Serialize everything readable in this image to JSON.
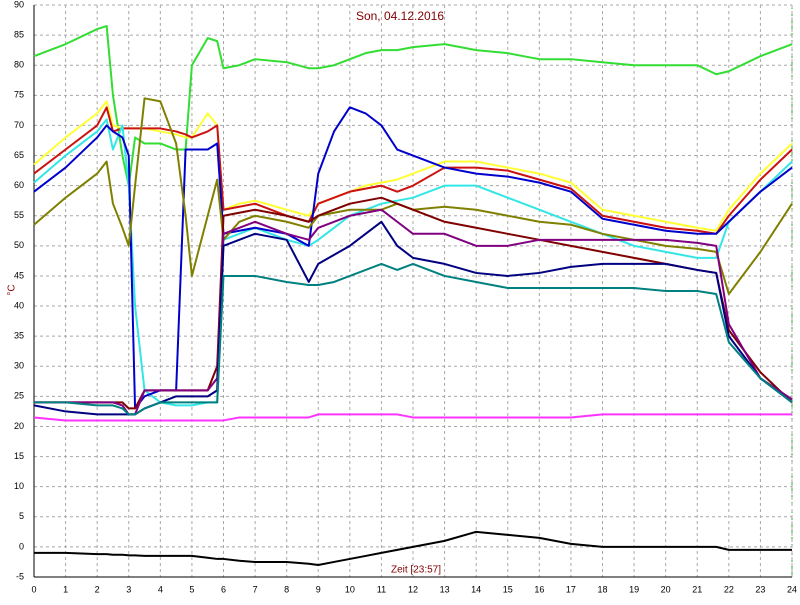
{
  "chart_data": {
    "type": "line",
    "title": "Son, 04.12.2016",
    "x_label": "Zeit [23:57]",
    "y_label": "°C",
    "xlim": [
      0,
      24
    ],
    "xticks": [
      0,
      1,
      2,
      3,
      4,
      5,
      6,
      7,
      8,
      9,
      10,
      11,
      12,
      13,
      14,
      15,
      16,
      17,
      18,
      19,
      20,
      21,
      22,
      23,
      24
    ],
    "ylim": [
      -5,
      90
    ],
    "yticks": [
      -5,
      0,
      5,
      10,
      15,
      20,
      25,
      30,
      35,
      40,
      45,
      50,
      55,
      60,
      65,
      70,
      75,
      80,
      85,
      90
    ],
    "grid": true,
    "x": [
      0,
      1,
      2,
      2.3,
      2.5,
      2.8,
      3,
      3.2,
      3.5,
      4,
      4.5,
      4.8,
      5,
      5.5,
      5.8,
      6,
      6.5,
      7,
      8,
      8.7,
      9,
      9.5,
      10,
      10.5,
      11,
      11.5,
      12,
      13,
      14,
      15,
      16,
      17,
      18,
      19,
      20,
      21,
      21.6,
      22,
      23,
      24
    ],
    "series": [
      {
        "color": "#33dd33",
        "values": [
          81.5,
          83.5,
          86,
          86.5,
          75,
          65,
          60,
          68,
          67,
          67,
          66,
          66,
          80,
          84.5,
          84,
          79.5,
          80,
          81,
          80.5,
          79.5,
          79.5,
          80,
          81,
          82,
          82.5,
          82.5,
          83,
          83.5,
          82.5,
          82,
          81,
          81,
          80.5,
          80,
          80,
          80,
          78.5,
          79,
          81.5,
          83.5
        ]
      },
      {
        "color": "#ffff33",
        "values": [
          63.5,
          68,
          72,
          74,
          70,
          69.5,
          69.5,
          69.5,
          69.5,
          69,
          68.5,
          68,
          68,
          72,
          70,
          56,
          57,
          57.5,
          56,
          55,
          57,
          58,
          59,
          60,
          60.5,
          61,
          62,
          64,
          64,
          63,
          62,
          60.5,
          56,
          55,
          54,
          53,
          52.5,
          56,
          62,
          67
        ]
      },
      {
        "color": "#cc1111",
        "values": [
          62,
          66,
          70,
          73,
          69,
          69.5,
          69.5,
          69.5,
          69.5,
          69.5,
          69,
          68.5,
          68,
          69,
          70,
          56,
          56.5,
          57,
          55,
          54,
          57,
          58,
          59,
          59.5,
          60,
          59,
          60,
          63,
          63,
          62.5,
          61,
          59.5,
          55,
          54,
          53,
          52.5,
          52,
          55,
          61,
          66
        ]
      },
      {
        "color": "#33e6e6",
        "values": [
          60.5,
          65,
          69,
          71,
          66,
          70,
          60,
          40,
          26,
          24,
          23.5,
          23.5,
          23.5,
          24,
          24,
          51,
          52,
          53,
          51,
          50,
          51,
          53,
          55,
          56,
          57,
          57.5,
          58,
          60,
          60,
          58,
          56,
          54,
          52,
          50,
          49,
          48,
          48,
          54,
          59,
          64
        ]
      },
      {
        "color": "#0000cc",
        "values": [
          59,
          63,
          68,
          70,
          69,
          68,
          65,
          23,
          25,
          26,
          26,
          66,
          66,
          66,
          67,
          52,
          52.5,
          53,
          52,
          50,
          62,
          69,
          73,
          72,
          70,
          66,
          65,
          63,
          62,
          61.5,
          60.5,
          59,
          54.5,
          53.5,
          52.5,
          52,
          52,
          54,
          59,
          63
        ]
      },
      {
        "color": "#808000",
        "values": [
          53.5,
          58,
          62,
          64,
          57,
          53,
          50,
          60,
          74.5,
          74,
          67,
          55,
          45,
          55,
          61,
          51,
          54,
          55,
          54,
          53,
          55,
          55.5,
          56,
          56,
          56,
          57,
          56,
          56.5,
          56,
          55,
          54,
          53.5,
          52,
          51,
          50,
          49.5,
          49,
          42,
          49,
          57
        ]
      },
      {
        "color": "#800000",
        "values": [
          24,
          24,
          24,
          24,
          24,
          24,
          23,
          23,
          26,
          26,
          26,
          26,
          26,
          26,
          30,
          55,
          55.5,
          56,
          55,
          54,
          55,
          56,
          57,
          57.5,
          58,
          57,
          56,
          54,
          53,
          52,
          51,
          50,
          49,
          48,
          47,
          46,
          45.5,
          36,
          29,
          24
        ]
      },
      {
        "color": "#800080",
        "values": [
          24,
          24,
          24,
          24,
          24,
          23.5,
          22,
          22,
          26,
          26,
          26,
          26,
          26,
          26,
          28,
          52,
          53,
          54,
          52,
          51,
          53,
          54,
          55,
          55.5,
          56,
          54,
          52,
          52,
          50,
          50,
          51,
          51,
          51,
          51,
          51,
          50.5,
          50,
          37,
          28,
          24.5
        ]
      },
      {
        "color": "#000080",
        "values": [
          23.5,
          22.5,
          22,
          22,
          22,
          22,
          22,
          22,
          23,
          24,
          25,
          25,
          25,
          25,
          26,
          50,
          51,
          52,
          51,
          44,
          47,
          48.5,
          50,
          52,
          54,
          50,
          48,
          47,
          45.5,
          45,
          45.5,
          46.5,
          47,
          47,
          47,
          46,
          45.5,
          35,
          28,
          24
        ]
      },
      {
        "color": "#008080",
        "values": [
          24,
          24,
          23.5,
          23.5,
          23.5,
          23,
          22,
          22,
          23,
          24,
          24,
          24,
          24,
          24,
          24,
          45,
          45,
          45,
          44,
          43.5,
          43.5,
          44,
          45,
          46,
          47,
          46,
          47,
          45,
          44,
          43,
          43,
          43,
          43,
          43,
          42.5,
          42.5,
          42,
          34,
          28,
          24
        ]
      },
      {
        "color": "#ff33ff",
        "values": [
          21.5,
          21,
          21,
          21,
          21,
          21,
          21,
          21,
          21,
          21,
          21,
          21,
          21,
          21,
          21,
          21,
          21.5,
          21.5,
          21.5,
          21.5,
          22,
          22,
          22,
          22,
          22,
          22,
          21.5,
          21.5,
          21.5,
          21.5,
          21.5,
          21.5,
          22,
          22,
          22,
          22,
          22,
          22,
          22,
          22
        ]
      },
      {
        "color": "#000000",
        "values": [
          -1,
          -1,
          -1.2,
          -1.2,
          -1.3,
          -1.3,
          -1.4,
          -1.4,
          -1.5,
          -1.5,
          -1.5,
          -1.5,
          -1.5,
          -1.8,
          -2,
          -2,
          -2.3,
          -2.5,
          -2.5,
          -2.8,
          -3,
          -2.5,
          -2,
          -1.5,
          -1,
          -0.5,
          0,
          1,
          2.5,
          2,
          1.5,
          0.5,
          0,
          0,
          0,
          0,
          0,
          -0.5,
          -0.5,
          -0.5
        ]
      }
    ]
  }
}
